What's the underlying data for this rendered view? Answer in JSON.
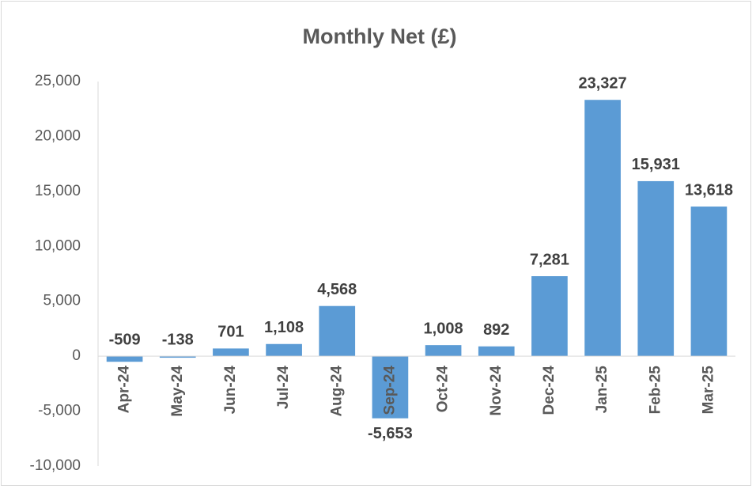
{
  "chart_data": {
    "type": "bar",
    "title": "Monthly Net (£)",
    "categories": [
      "Apr-24",
      "May-24",
      "Jun-24",
      "Jul-24",
      "Aug-24",
      "Sep-24",
      "Oct-24",
      "Nov-24",
      "Dec-24",
      "Jan-25",
      "Feb-25",
      "Mar-25"
    ],
    "values": [
      -509,
      -138,
      701,
      1108,
      4568,
      -5653,
      1008,
      892,
      7281,
      23327,
      15931,
      13618
    ],
    "value_labels": [
      "-509",
      "-138",
      "701",
      "1,108",
      "4,568",
      "-5,653",
      "1,008",
      "892",
      "7,281",
      "23,327",
      "15,931",
      "13,618"
    ],
    "color": "#5b9bd5",
    "ylim": [
      -10000,
      25000
    ],
    "yticks": [
      {
        "value": -10000,
        "label": "-10,000"
      },
      {
        "value": -5000,
        "label": "-5,000"
      },
      0,
      {
        "value": 5000,
        "label": "5,000"
      },
      {
        "value": 10000,
        "label": "10,000"
      },
      {
        "value": 15000,
        "label": "15,000"
      },
      {
        "value": 20000,
        "label": "20,000"
      },
      {
        "value": 25000,
        "label": "25,000"
      }
    ],
    "grid": false
  }
}
